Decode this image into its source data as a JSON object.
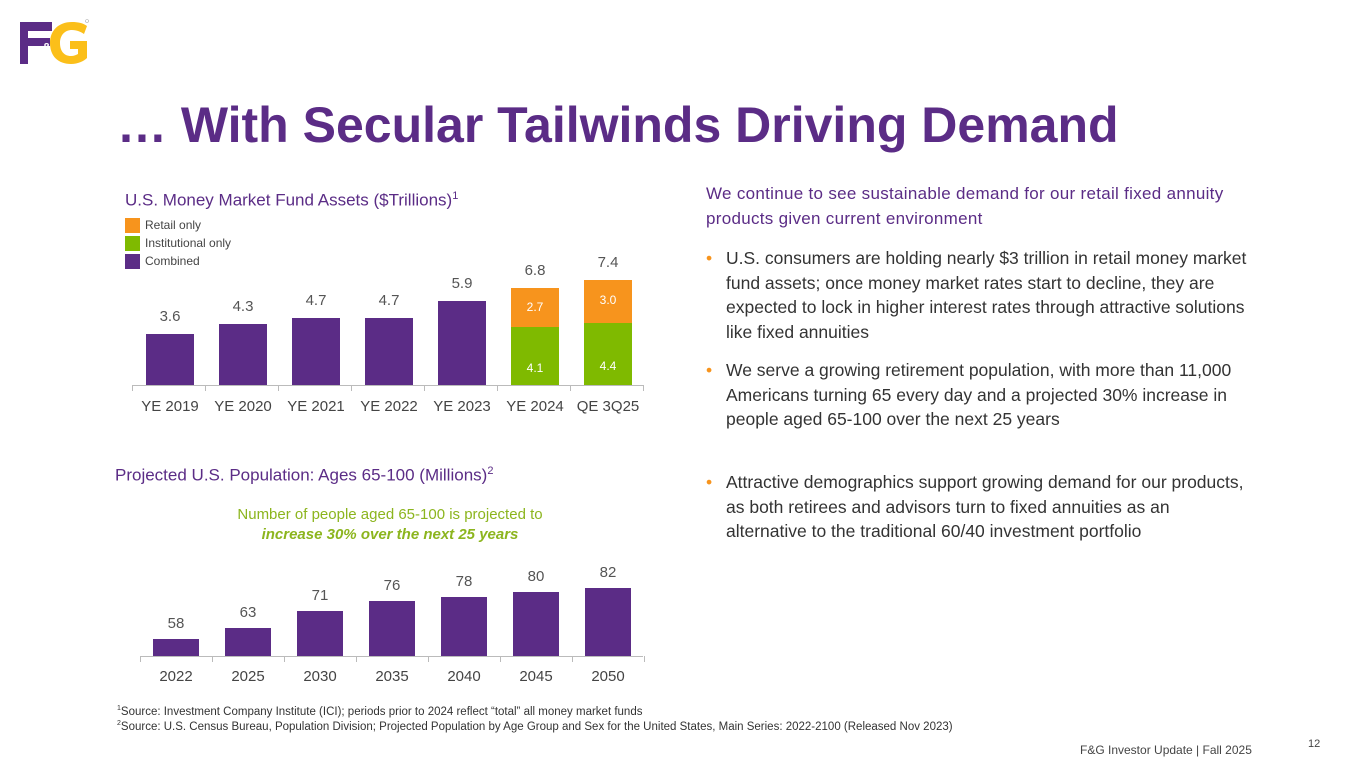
{
  "logo": {
    "text": "F&G"
  },
  "title": "… With Secular Tailwinds Driving Demand",
  "colors": {
    "purple": "#5b2c86",
    "orange": "#f7941d",
    "green": "#7fba00",
    "gold": "#fbbf1a"
  },
  "chart_data": [
    {
      "type": "bar",
      "title": "U.S. Money Market Fund Assets ($Trillions)",
      "title_sup": "1",
      "legend": [
        "Retail only",
        "Institutional only",
        "Combined"
      ],
      "legend_placement": "top-left",
      "categories": [
        "YE 2019",
        "YE 2020",
        "YE 2021",
        "YE 2022",
        "YE 2023",
        "YE 2024",
        "QE 3Q25"
      ],
      "series": [
        {
          "name": "Combined",
          "values": [
            3.6,
            4.3,
            4.7,
            4.7,
            5.9,
            null,
            null
          ]
        },
        {
          "name": "Institutional only",
          "values": [
            null,
            null,
            null,
            null,
            null,
            4.1,
            4.4
          ]
        },
        {
          "name": "Retail only",
          "values": [
            null,
            null,
            null,
            null,
            null,
            2.7,
            3.0
          ]
        }
      ],
      "totals": [
        "3.6",
        "4.3",
        "4.7",
        "4.7",
        "5.9",
        "6.8",
        "7.4"
      ],
      "ylim": [
        0,
        8
      ]
    },
    {
      "type": "bar",
      "title": "Projected U.S. Population: Ages 65-100 (Millions)",
      "title_sup": "2",
      "annotation_line1": "Number of people aged 65-100 is projected to",
      "annotation_line2": "increase 30% over the next 25 years",
      "categories": [
        "2022",
        "2025",
        "2030",
        "2035",
        "2040",
        "2045",
        "2050"
      ],
      "values": [
        58,
        63,
        71,
        76,
        78,
        80,
        82
      ],
      "labels": [
        "58",
        "63",
        "71",
        "76",
        "78",
        "80",
        "82"
      ],
      "ylim": [
        50,
        85
      ]
    }
  ],
  "right": {
    "heading": "We continue to see sustainable demand for our retail fixed annuity products given current environment",
    "bullets": [
      "U.S. consumers are holding nearly $3 trillion in retail money market fund assets; once money market rates start to decline, they are expected to lock in higher interest rates through attractive solutions like fixed annuities",
      "We serve a growing retirement population, with more than 11,000 Americans turning 65 every day and a projected 30% increase in people aged 65-100 over the next 25 years",
      "Attractive demographics support growing demand for our products, as both retirees and advisors turn to fixed annuities as an alternative to the traditional 60/40 investment portfolio"
    ]
  },
  "footnotes": [
    {
      "sup": "1",
      "text": "Source: Investment Company Institute (ICI); periods prior to 2024 reflect “total” all money market funds"
    },
    {
      "sup": "2",
      "text": "Source: U.S. Census Bureau, Population Division; Projected Population by Age Group and Sex for the United States, Main Series: 2022-2100 (Released Nov 2023)"
    }
  ],
  "footer": "F&G Investor Update |  Fall 2025",
  "page_number": "12"
}
